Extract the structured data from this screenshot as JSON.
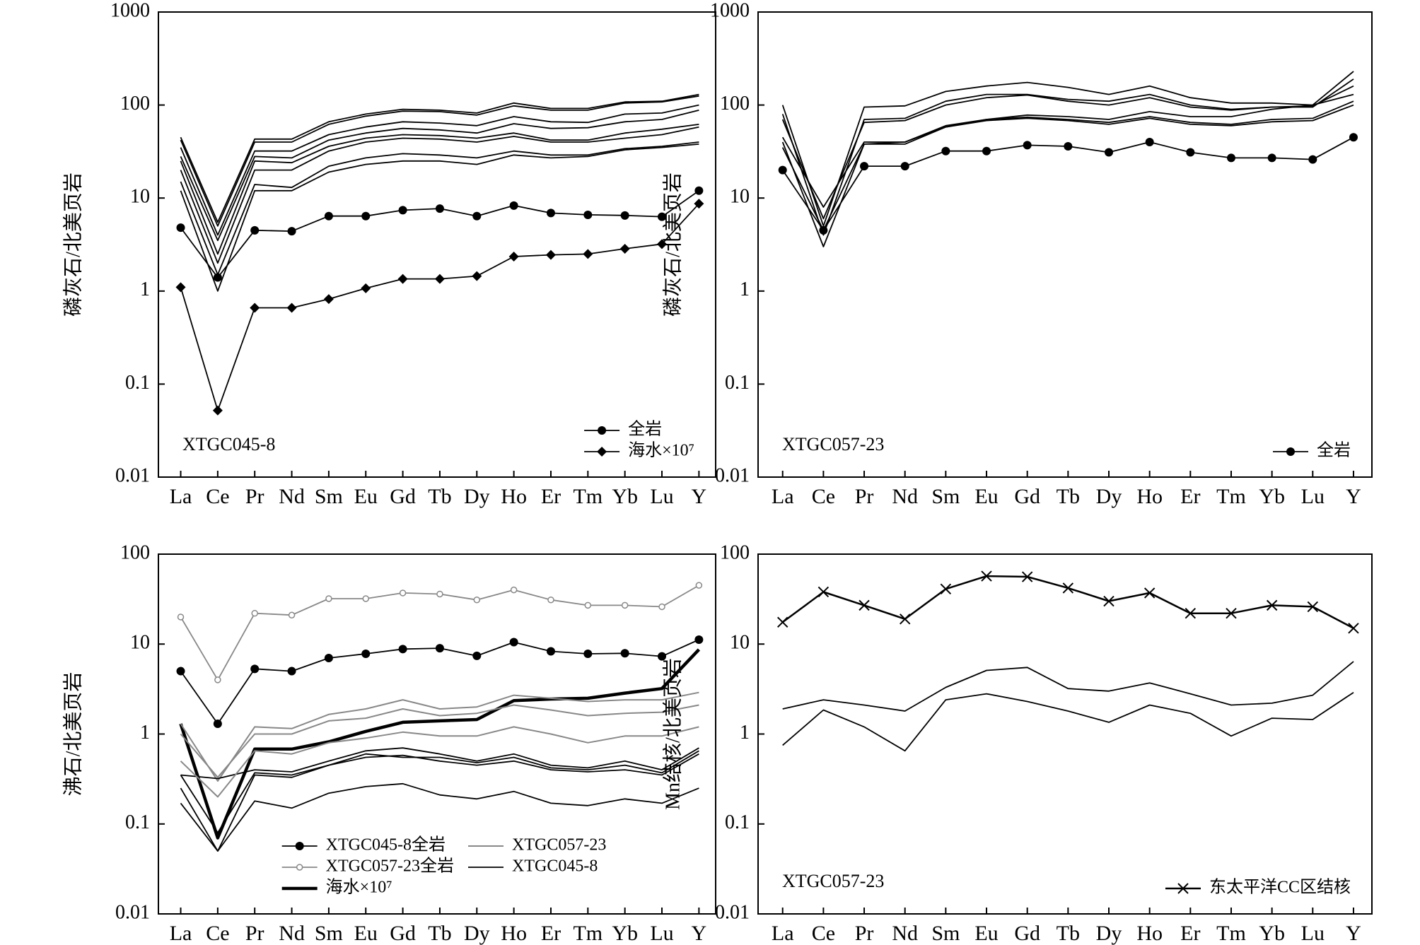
{
  "chart_data": [
    {
      "type": "line",
      "log_y": true,
      "ylim": [
        0.01,
        1000
      ],
      "yticks": [
        0.01,
        0.1,
        1,
        10,
        100,
        1000
      ],
      "y_label": "磷灰石/北美页岩",
      "annotation": "XTGC045-8",
      "legend": "lower right",
      "legend_columns": 1,
      "categories": [
        "La",
        "Ce",
        "Pr",
        "Nd",
        "Sm",
        "Eu",
        "Gd",
        "Tb",
        "Dy",
        "Ho",
        "Er",
        "Tm",
        "Yb",
        "Lu",
        "Y"
      ],
      "series": [
        {
          "color": "#000",
          "width": 1.8,
          "values": [
            45,
            5.5,
            43,
            43,
            66,
            80,
            90,
            88,
            82,
            105,
            92,
            92,
            108,
            110,
            130
          ]
        },
        {
          "color": "#000",
          "width": 1.8,
          "values": [
            42,
            5,
            40,
            40,
            62,
            76,
            86,
            85,
            78,
            98,
            88,
            88,
            105,
            108,
            125
          ]
        },
        {
          "color": "#000",
          "width": 1.8,
          "values": [
            35,
            4,
            32,
            32,
            48,
            58,
            66,
            64,
            60,
            75,
            66,
            65,
            80,
            82,
            100
          ]
        },
        {
          "color": "#000",
          "width": 1.8,
          "values": [
            28,
            3.5,
            28,
            27,
            42,
            50,
            56,
            54,
            50,
            63,
            56,
            57,
            66,
            70,
            88
          ]
        },
        {
          "color": "#000",
          "width": 1.8,
          "values": [
            25,
            2.5,
            25,
            24,
            36,
            44,
            48,
            47,
            44,
            50,
            42,
            42,
            50,
            55,
            62
          ]
        },
        {
          "color": "#000",
          "width": 1.8,
          "values": [
            20,
            2,
            20,
            20,
            32,
            40,
            44,
            43,
            40,
            46,
            40,
            40,
            44,
            48,
            58
          ]
        },
        {
          "color": "#000",
          "width": 1.8,
          "values": [
            15,
            1.5,
            14,
            13,
            22,
            27,
            30,
            29,
            27,
            32,
            29,
            29,
            34,
            36,
            40
          ]
        },
        {
          "color": "#000",
          "width": 1.8,
          "values": [
            12,
            1,
            12,
            12,
            19,
            23,
            25,
            25,
            23,
            29,
            27,
            28,
            33,
            35,
            38
          ]
        },
        {
          "name": "全岩",
          "marker": "circle",
          "color": "#000",
          "width": 1.8,
          "values": [
            4.8,
            1.4,
            4.5,
            4.4,
            6.4,
            6.4,
            7.4,
            7.7,
            6.4,
            8.3,
            6.9,
            6.6,
            6.5,
            6.3,
            12
          ]
        },
        {
          "name": "海水×10⁷",
          "marker": "diamond",
          "color": "#000",
          "width": 1.8,
          "values": [
            1.1,
            0.052,
            0.66,
            0.66,
            0.82,
            1.07,
            1.35,
            1.35,
            1.45,
            2.35,
            2.45,
            2.5,
            2.85,
            3.2,
            8.7
          ]
        }
      ]
    },
    {
      "type": "line",
      "log_y": true,
      "ylim": [
        0.01,
        1000
      ],
      "yticks": [
        0.01,
        0.1,
        1,
        10,
        100,
        1000
      ],
      "y_label": "磷灰石/北美页岩",
      "annotation": "XTGC057-23",
      "legend": "lower right",
      "legend_columns": 1,
      "categories": [
        "La",
        "Ce",
        "Pr",
        "Nd",
        "Sm",
        "Eu",
        "Gd",
        "Tb",
        "Dy",
        "Ho",
        "Er",
        "Tm",
        "Yb",
        "Lu",
        "Y"
      ],
      "series": [
        {
          "color": "#000",
          "width": 1.8,
          "values": [
            100,
            5,
            95,
            98,
            140,
            160,
            175,
            155,
            130,
            160,
            120,
            105,
            105,
            100,
            230
          ]
        },
        {
          "color": "#000",
          "width": 1.8,
          "values": [
            80,
            4,
            70,
            72,
            110,
            130,
            130,
            115,
            110,
            130,
            100,
            90,
            95,
            95,
            190
          ]
        },
        {
          "color": "#000",
          "width": 1.8,
          "values": [
            70,
            6,
            65,
            68,
            100,
            120,
            128,
            110,
            100,
            120,
            95,
            88,
            95,
            98,
            160
          ]
        },
        {
          "color": "#000",
          "width": 1.8,
          "values": [
            45,
            8,
            40,
            40,
            60,
            70,
            78,
            75,
            70,
            85,
            75,
            75,
            90,
            100,
            130
          ]
        },
        {
          "color": "#000",
          "width": 1.8,
          "values": [
            40,
            3,
            38,
            38,
            58,
            70,
            74,
            70,
            65,
            75,
            65,
            62,
            70,
            72,
            110
          ]
        },
        {
          "color": "#000",
          "width": 1.8,
          "values": [
            35,
            4.5,
            38,
            40,
            58,
            68,
            72,
            68,
            62,
            72,
            62,
            60,
            66,
            68,
            100
          ]
        },
        {
          "name": "全岩",
          "marker": "circle",
          "color": "#000",
          "width": 1.8,
          "values": [
            20,
            4.5,
            22,
            22,
            32,
            32,
            37,
            36,
            31,
            40,
            31,
            27,
            27,
            26,
            45
          ]
        }
      ]
    },
    {
      "type": "line",
      "log_y": true,
      "ylim": [
        0.01,
        100
      ],
      "yticks": [
        0.01,
        0.1,
        1,
        10,
        100
      ],
      "y_label": "沸石/北美页岩",
      "legend": "lower center",
      "legend_columns": 2,
      "categories": [
        "La",
        "Ce",
        "Pr",
        "Nd",
        "Sm",
        "Eu",
        "Gd",
        "Tb",
        "Dy",
        "Ho",
        "Er",
        "Tm",
        "Yb",
        "Lu",
        "Y"
      ],
      "series": [
        {
          "name": "XTGC045-8全岩",
          "marker": "circle",
          "color": "#000",
          "width": 1.8,
          "values": [
            5,
            1.3,
            5.3,
            5,
            7,
            7.8,
            8.8,
            9,
            7.4,
            10.5,
            8.3,
            7.8,
            7.9,
            7.3,
            11.2
          ]
        },
        {
          "name": "XTGC057-23全岩",
          "marker": "open-circle",
          "color": "#888",
          "width": 1.8,
          "values": [
            20,
            4,
            22,
            21,
            32,
            32,
            37,
            36,
            31,
            40,
            31,
            27,
            27,
            26,
            45
          ]
        },
        {
          "name": "海水×10⁷",
          "color": "#000",
          "width": 4.5,
          "values": [
            1.3,
            0.07,
            0.68,
            0.68,
            0.82,
            1.07,
            1.35,
            1.4,
            1.45,
            2.35,
            2.45,
            2.5,
            2.85,
            3.2,
            8.7
          ]
        },
        {
          "name": "XTGC057-23",
          "color": "#888",
          "width": 2,
          "values": [
            1.3,
            0.3,
            1.2,
            1.15,
            1.65,
            1.9,
            2.4,
            1.9,
            2,
            2.7,
            2.5,
            2.3,
            2.4,
            2.4,
            2.9
          ]
        },
        {
          "name": "XTGC045-8",
          "color": "#000",
          "width": 1.8,
          "values": [
            0.35,
            0.32,
            0.4,
            0.38,
            0.5,
            0.65,
            0.7,
            0.6,
            0.5,
            0.6,
            0.45,
            0.42,
            0.5,
            0.4,
            0.7
          ]
        },
        {
          "color": "#888",
          "width": 2,
          "values": [
            1,
            0.33,
            1,
            1,
            1.4,
            1.5,
            1.9,
            1.6,
            1.7,
            2.1,
            1.85,
            1.6,
            1.7,
            1.75,
            2.1
          ]
        },
        {
          "color": "#888",
          "width": 2,
          "values": [
            0.5,
            0.2,
            0.65,
            0.6,
            0.8,
            0.9,
            1.05,
            0.95,
            0.95,
            1.2,
            1,
            0.8,
            0.95,
            0.95,
            1.2
          ]
        },
        {
          "color": "#000",
          "width": 1.8,
          "values": [
            0.35,
            0.08,
            0.37,
            0.35,
            0.45,
            0.6,
            0.55,
            0.55,
            0.48,
            0.55,
            0.42,
            0.4,
            0.45,
            0.37,
            0.65
          ]
        },
        {
          "color": "#000",
          "width": 1.8,
          "values": [
            0.25,
            0.05,
            0.35,
            0.33,
            0.45,
            0.55,
            0.58,
            0.5,
            0.45,
            0.5,
            0.4,
            0.38,
            0.4,
            0.35,
            0.6
          ]
        },
        {
          "color": "#000",
          "width": 1.8,
          "values": [
            0.17,
            0.05,
            0.18,
            0.15,
            0.22,
            0.26,
            0.28,
            0.21,
            0.19,
            0.23,
            0.17,
            0.16,
            0.19,
            0.17,
            0.25
          ]
        }
      ]
    },
    {
      "type": "line",
      "log_y": true,
      "ylim": [
        0.01,
        100
      ],
      "yticks": [
        0.01,
        0.1,
        1,
        10,
        100
      ],
      "y_label": "Mn结核/北美页岩",
      "annotation": "XTGC057-23",
      "legend": "lower right",
      "legend_columns": 1,
      "categories": [
        "La",
        "Ce",
        "Pr",
        "Nd",
        "Sm",
        "Eu",
        "Gd",
        "Tb",
        "Dy",
        "Ho",
        "Er",
        "Tm",
        "Yb",
        "Lu",
        "Y"
      ],
      "series": [
        {
          "name": "东太平洋CC区结核",
          "marker": "x",
          "color": "#000",
          "width": 2.5,
          "values": [
            17.5,
            38,
            27,
            19,
            41,
            57,
            56,
            42,
            30,
            37,
            22,
            22,
            27,
            26,
            15
          ]
        },
        {
          "color": "#000",
          "width": 1.8,
          "values": [
            1.9,
            2.4,
            2.1,
            1.8,
            3.3,
            5.1,
            5.5,
            3.2,
            3,
            3.7,
            2.8,
            2.1,
            2.2,
            2.7,
            6.4
          ]
        },
        {
          "color": "#000",
          "width": 1.8,
          "values": [
            0.75,
            1.85,
            1.2,
            0.65,
            2.4,
            2.8,
            2.3,
            1.8,
            1.35,
            2.1,
            1.7,
            0.95,
            1.5,
            1.45,
            2.9
          ]
        }
      ]
    }
  ]
}
